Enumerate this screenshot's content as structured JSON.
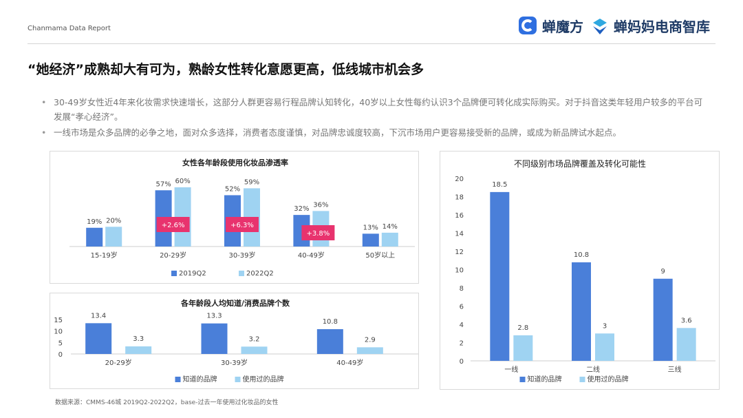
{
  "header": {
    "brand_text": "Chanmama Data Report",
    "logo1": "蝉魔方",
    "logo2": "蝉妈妈电商智库"
  },
  "title": "“她经济”成熟却大有可为，熟龄女性转化意愿更高，低线城市机会多",
  "bullets": [
    "30-49岁女性近4年来化妆需求快速增长，这部分人群更容易行程品牌认知转化，40岁以上女性每约认识3个品牌便可转化成实际购买。对于抖音这类年轻用户较多的平台可发展“孝心经济”。",
    "一线市场是众多品牌的必争之地，面对众多选择，消费者态度谨慎，对品牌忠诚度较高，下沉市场用户更容易接受新的品牌，或成为新品牌试水起点。"
  ],
  "source": "数据来源：CMMS-46城 2019Q2-2022Q2，base-过去一年使用过化妆品的女性",
  "colors": {
    "dark": "#4a7fd9",
    "light": "#9fd3f2",
    "badge": "#e8336e"
  },
  "chart_data": [
    {
      "type": "bar",
      "title": "女性各年龄段使用化妆品渗透率",
      "categories": [
        "15-19岁",
        "20-29岁",
        "30-39岁",
        "40-49岁",
        "50岁以上"
      ],
      "series": [
        {
          "name": "2019Q2",
          "values": [
            19,
            57,
            52,
            32,
            13
          ],
          "labels": [
            "19%",
            "57%",
            "52%",
            "32%",
            "13%"
          ]
        },
        {
          "name": "2022Q2",
          "values": [
            20,
            60,
            59,
            36,
            14
          ],
          "labels": [
            "20%",
            "60%",
            "59%",
            "36%",
            "14%"
          ]
        }
      ],
      "annotations": [
        {
          "category": "20-29岁",
          "text": "+2.6%"
        },
        {
          "category": "30-39岁",
          "text": "+6.3%"
        },
        {
          "category": "40-49岁",
          "text": "+3.8%"
        }
      ],
      "legend": "bottom",
      "ylim": [
        0,
        60
      ]
    },
    {
      "type": "bar",
      "title": "各年龄段人均知道/消费品牌个数",
      "categories": [
        "20-29岁",
        "30-39岁",
        "40-49岁"
      ],
      "series": [
        {
          "name": "知道的品牌",
          "values": [
            13.4,
            13.3,
            10.8
          ]
        },
        {
          "name": "使用过的品牌",
          "values": [
            3.3,
            3.2,
            2.9
          ]
        }
      ],
      "yticks": [
        0,
        5,
        10,
        15
      ],
      "ylim": [
        0,
        15
      ],
      "legend": "bottom"
    },
    {
      "type": "bar",
      "title": "不同级别市场品牌覆盖及转化可能性",
      "categories": [
        "一线",
        "二线",
        "三线"
      ],
      "series": [
        {
          "name": "知道的品牌",
          "values": [
            18.5,
            10.8,
            9
          ]
        },
        {
          "name": "使用过的品牌",
          "values": [
            2.8,
            3,
            3.6
          ]
        }
      ],
      "yticks": [
        0,
        2,
        4,
        6,
        8,
        10,
        12,
        14,
        16,
        18,
        20
      ],
      "ylim": [
        0,
        20
      ],
      "legend": "bottom"
    }
  ]
}
